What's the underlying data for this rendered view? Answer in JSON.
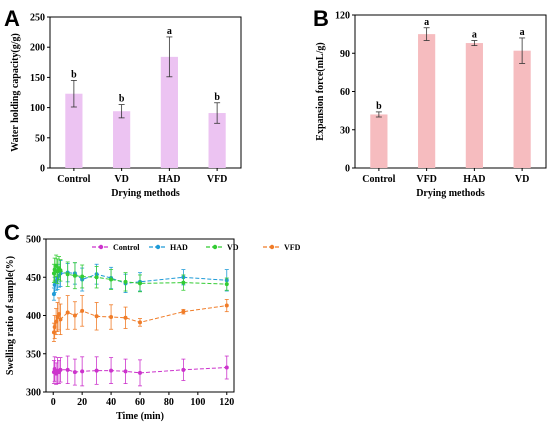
{
  "panels": {
    "a": "A",
    "b": "B",
    "c": "C"
  },
  "chart_data": [
    {
      "type": "bar",
      "categories": [
        "Control",
        "VD",
        "HAD",
        "VFD"
      ],
      "values": [
        123,
        94,
        184,
        91
      ],
      "errors": [
        22,
        11,
        33,
        17
      ],
      "labels": [
        "b",
        "b",
        "a",
        "b"
      ],
      "xlabel": "Drying methods",
      "ylabel": "Water holding capacity(g/g)",
      "ylim": [
        0,
        250
      ],
      "yticks": [
        0,
        50,
        100,
        150,
        200,
        250
      ],
      "color": "#ecc3f2"
    },
    {
      "type": "bar",
      "categories": [
        "Control",
        "VFD",
        "HAD",
        "VD"
      ],
      "values": [
        42,
        105,
        98,
        92
      ],
      "errors": [
        2,
        5,
        2,
        10
      ],
      "labels": [
        "b",
        "a",
        "a",
        "a"
      ],
      "xlabel": "Drying methods",
      "ylabel": "Expansion force(mL/g)",
      "ylim": [
        0,
        120
      ],
      "yticks": [
        0,
        30,
        60,
        90,
        120
      ],
      "color": "#f6bcbf"
    },
    {
      "type": "line",
      "xlabel": "Time (min)",
      "ylabel": "Swelling ratio of sample(%)",
      "xlim": [
        -5,
        125
      ],
      "ylim": [
        300,
        500
      ],
      "xticks": [
        0,
        20,
        40,
        60,
        80,
        100,
        120
      ],
      "yticks": [
        300,
        350,
        400,
        450,
        500
      ],
      "x": [
        0.5,
        1,
        2,
        3,
        4,
        5,
        10,
        15,
        20,
        30,
        40,
        50,
        60,
        90,
        120
      ],
      "series": [
        {
          "name": "Control",
          "color": "#cc33cc",
          "values": [
            326,
            330,
            324,
            328,
            326,
            329,
            329,
            326,
            327,
            328,
            328,
            327,
            325,
            329,
            332
          ],
          "errors": [
            15,
            16,
            14,
            17,
            15,
            16,
            18,
            17,
            19,
            18,
            17,
            16,
            17,
            14,
            15
          ]
        },
        {
          "name": "HAD",
          "color": "#1f9bd7",
          "values": [
            428,
            440,
            445,
            448,
            452,
            455,
            456,
            455,
            447,
            454,
            449,
            442,
            444,
            450,
            446
          ],
          "errors": [
            8,
            10,
            12,
            14,
            15,
            17,
            12,
            14,
            15,
            13,
            14,
            12,
            12,
            10,
            14
          ]
        },
        {
          "name": "VD",
          "color": "#33cc33",
          "values": [
            455,
            460,
            465,
            458,
            462,
            459,
            454,
            452,
            451,
            450,
            447,
            444,
            442,
            443,
            441
          ],
          "errors": [
            12,
            15,
            14,
            16,
            15,
            14,
            16,
            17,
            15,
            14,
            13,
            12,
            11,
            10,
            8
          ]
        },
        {
          "name": "VFD",
          "color": "#f07c28",
          "values": [
            378,
            385,
            392,
            398,
            402,
            395,
            404,
            400,
            406,
            399,
            398,
            397,
            391,
            405,
            413
          ],
          "errors": [
            12,
            15,
            17,
            19,
            21,
            20,
            22,
            18,
            20,
            18,
            16,
            14,
            5,
            3,
            8
          ]
        }
      ]
    }
  ]
}
